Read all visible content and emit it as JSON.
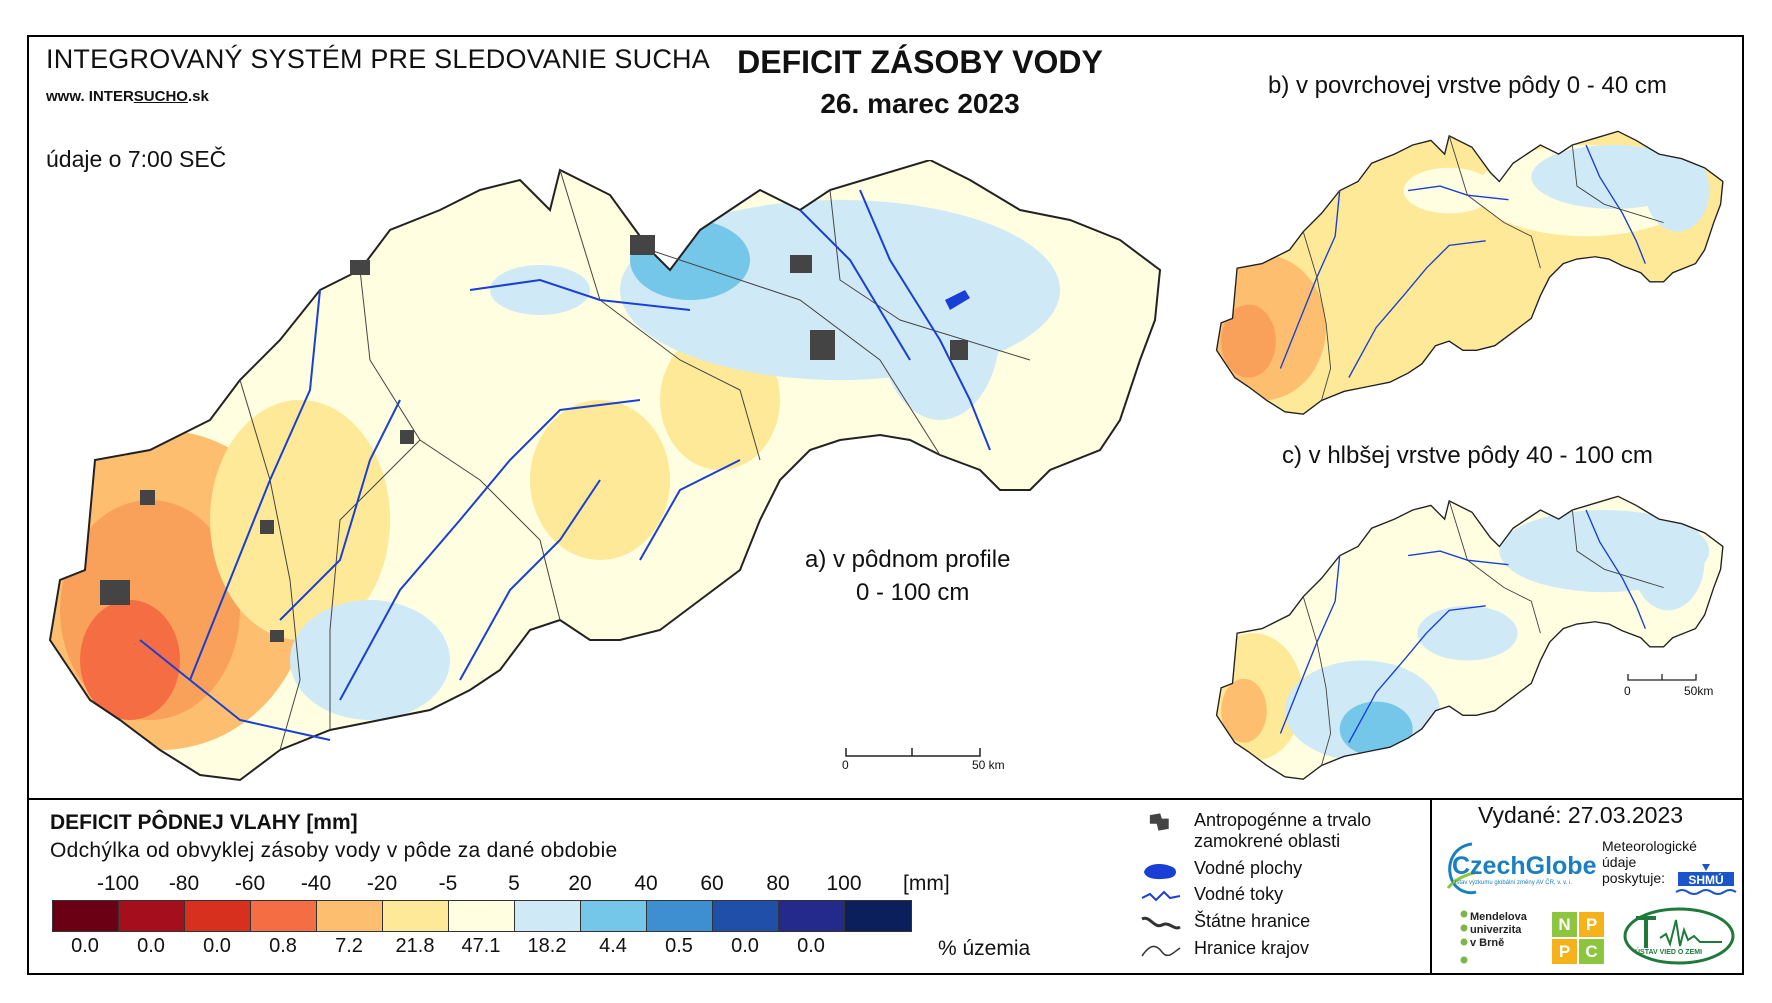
{
  "header": {
    "system_title": "INTEGROVANÝ SYSTÉM PRE SLEDOVANIE SUCHA",
    "site_prefix": "www. INTER",
    "site_underlined": "SUCHO",
    "site_suffix": ".sk",
    "data_time": "údaje o 7:00 SEČ",
    "main_title": "DEFICIT ZÁSOBY VODY",
    "main_date": "26. marec 2023"
  },
  "maps": {
    "a_label_line1": "a) v pôdnom profile",
    "a_label_line2": "0 - 100 cm",
    "b_label": "b) v povrchovej vrstve pôdy 0 - 40 cm",
    "c_label": "c) v hlbšej vrstve pôdy 40 - 100 cm",
    "scale_main_start": "0",
    "scale_main_end": "50 km",
    "scale_small_start": "0",
    "scale_small_end": "50km"
  },
  "legend": {
    "title": "DEFICIT PÔDNEJ VLAHY [mm]",
    "subtitle": "Odchýlka od obvyklej zásoby vody v pôde za dané obdobie",
    "ticks": [
      "-100",
      "-80",
      "-60",
      "-40",
      "-20",
      "-5",
      "5",
      "20",
      "40",
      "60",
      "80",
      "100"
    ],
    "unit": "[mm]",
    "colors": [
      "#6b0014",
      "#a50f1d",
      "#d7301f",
      "#f46d43",
      "#fdbf6f",
      "#fee999",
      "#fffee0",
      "#cfeaf6",
      "#74c7e8",
      "#3e8fd2",
      "#1f4fa8",
      "#232a8c",
      "#0a1f5c"
    ],
    "percentages": [
      "0.0",
      "0.0",
      "0.0",
      "0.8",
      "7.2",
      "21.8",
      "47.1",
      "18.2",
      "4.4",
      "0.5",
      "0.0",
      "0.0"
    ],
    "pct_unit": "% územia",
    "symbols": [
      {
        "label_line1": "Antropogénne a trvalo",
        "label_line2": "zamokrené oblasti",
        "icon": "urban-area-icon"
      },
      {
        "label_line1": "Vodné plochy",
        "label_line2": "",
        "icon": "water-body-icon"
      },
      {
        "label_line1": "Vodné toky",
        "label_line2": "",
        "icon": "river-icon"
      },
      {
        "label_line1": "Štátne hranice",
        "label_line2": "",
        "icon": "state-border-icon"
      },
      {
        "label_line1": "Hranice krajov",
        "label_line2": "",
        "icon": "region-border-icon"
      }
    ]
  },
  "footer": {
    "issued": "Vydané: 27.03.2023",
    "czechglobe": "CzechGlobe",
    "czechglobe_sub": "Ústav výzkumu globální změny AV ČR, v. v. i.",
    "meteo_line1": "Meteorologické",
    "meteo_line2": "údaje",
    "meteo_line3": "poskytuje:",
    "shmu": "SHMÚ",
    "mendel_line1": "Mendelova",
    "mendel_line2": "univerzita",
    "mendel_line3": "v Brně",
    "nppc": [
      "N",
      "P",
      "P",
      "C"
    ],
    "uvz": "ÚSTAV VIED O ZEMI"
  }
}
